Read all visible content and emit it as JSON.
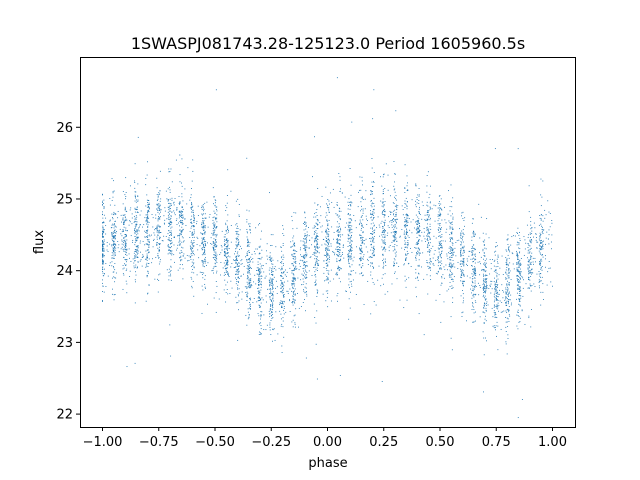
{
  "chart_data": {
    "type": "scatter",
    "title": "1SWASPJ081743.28-125123.0 Period 1605960.5s",
    "xlabel": "phase",
    "ylabel": "flux",
    "xlim": [
      -1.1,
      1.1
    ],
    "ylim": [
      21.82,
      26.98
    ],
    "xticks": [
      -1.0,
      -0.75,
      -0.5,
      -0.25,
      0.0,
      0.25,
      0.5,
      0.75,
      1.0
    ],
    "xtick_labels": [
      "−1.00",
      "−0.75",
      "−0.50",
      "−0.25",
      "0.00",
      "0.25",
      "0.50",
      "0.75",
      "1.00"
    ],
    "yticks": [
      22,
      23,
      24,
      25,
      26
    ],
    "ytick_labels": [
      "22",
      "23",
      "24",
      "25",
      "26"
    ],
    "grid": false,
    "legend": "none",
    "marker_color": "#1f77b4",
    "series": [
      {
        "profile_phase": [
          -1.0,
          -0.9,
          -0.8,
          -0.7,
          -0.6,
          -0.5,
          -0.45,
          -0.4,
          -0.35,
          -0.3,
          -0.25,
          -0.2,
          -0.15,
          -0.1,
          -0.05,
          0.0,
          0.1,
          0.2,
          0.3,
          0.4,
          0.5,
          0.55,
          0.6,
          0.65,
          0.7,
          0.75,
          0.8,
          0.85,
          0.9,
          0.95,
          1.0
        ],
        "profile_flux": [
          24.4,
          24.45,
          24.55,
          24.6,
          24.5,
          24.4,
          24.25,
          24.15,
          24.0,
          23.85,
          23.75,
          23.8,
          23.95,
          24.15,
          24.3,
          24.4,
          24.45,
          24.55,
          24.6,
          24.5,
          24.4,
          24.25,
          24.15,
          24.0,
          23.85,
          23.75,
          23.8,
          23.95,
          24.15,
          24.3,
          24.4
        ],
        "spread": 0.45,
        "n_points": 5200
      }
    ]
  }
}
